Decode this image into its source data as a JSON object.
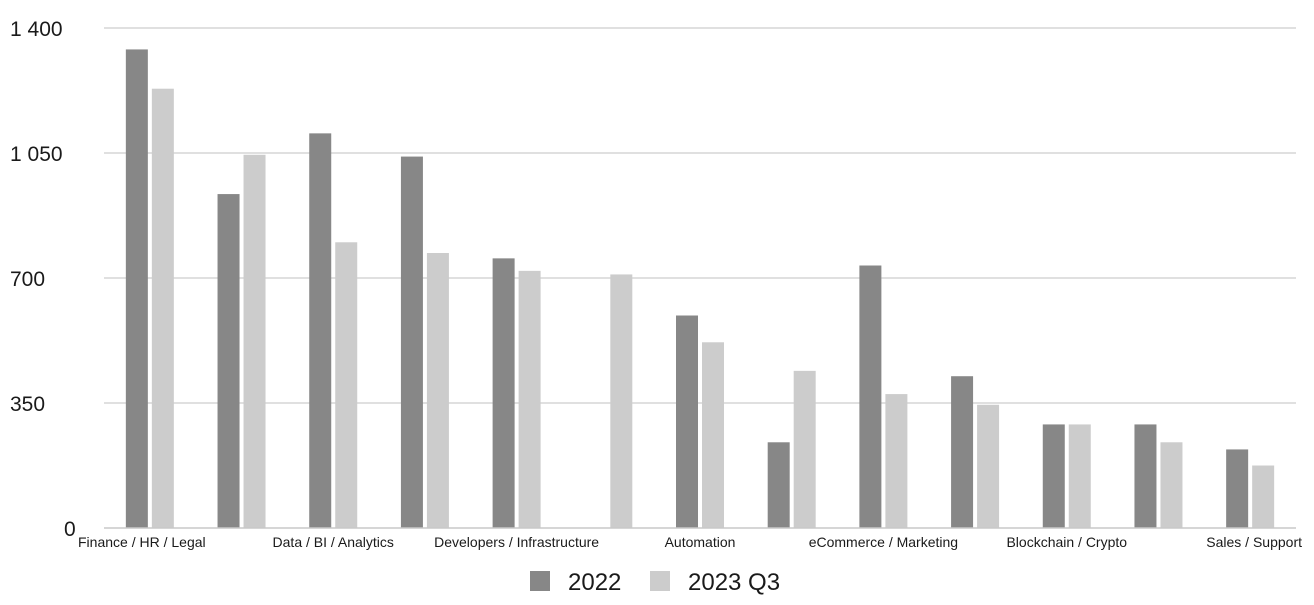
{
  "chart_data": {
    "type": "bar",
    "categories": [
      "Finance / HR / Legal",
      "",
      "Data / BI / Analytics",
      "",
      "Developers / Infrastructure",
      "",
      "Automation",
      "",
      "eCommerce / Marketing",
      "",
      "Blockchain / Crypto",
      "",
      "Sales / Support"
    ],
    "series": [
      {
        "name": "2022",
        "color": "#878787",
        "values": [
          1340,
          935,
          1105,
          1040,
          755,
          0,
          595,
          240,
          735,
          425,
          290,
          290,
          220
        ]
      },
      {
        "name": "2023 Q3",
        "color": "#cccccc",
        "values": [
          1230,
          1045,
          800,
          770,
          720,
          710,
          520,
          440,
          375,
          345,
          290,
          240,
          175
        ]
      }
    ],
    "yticks": [
      {
        "value": 0,
        "label": "0"
      },
      {
        "value": 350,
        "label": "350"
      },
      {
        "value": 700,
        "label": "700"
      },
      {
        "value": 1050,
        "label": "1 050"
      },
      {
        "value": 1400,
        "label": "1 400"
      }
    ],
    "ylim": [
      0,
      1400
    ],
    "grid": true,
    "legend_position": "bottom"
  }
}
